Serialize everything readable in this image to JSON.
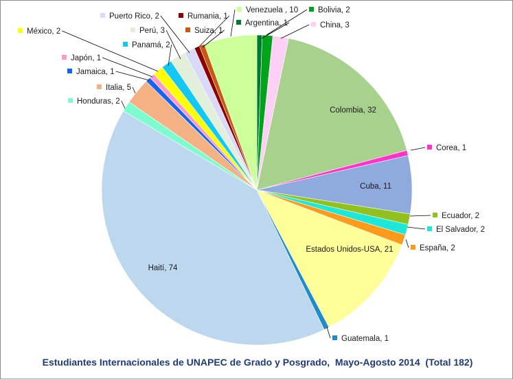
{
  "chart_data": {
    "type": "pie",
    "title": "Estudiantes Internacionales de UNAPEC de Grado y Posgrado,  Mayo-Agosto 2014  (Total 182)",
    "legend": "none",
    "slices": [
      {
        "label": "Argentina",
        "value": 1,
        "text": "Argentina, 1",
        "color": "#007a2c"
      },
      {
        "label": "Bolivia",
        "value": 2,
        "text": "Bolivia, 2",
        "color": "#00a31a"
      },
      {
        "label": "China",
        "value": 3,
        "text": "China, 3",
        "color": "#ffd0f5"
      },
      {
        "label": "Colombia",
        "value": 32,
        "text": "Colombia, 32",
        "color": "#a9d18e"
      },
      {
        "label": "Corea",
        "value": 1,
        "text": "Corea, 1",
        "color": "#ff33cc"
      },
      {
        "label": "Cuba",
        "value": 11,
        "text": "Cuba, 11",
        "color": "#8faadc"
      },
      {
        "label": "Ecuador",
        "value": 2,
        "text": "Ecuador, 2",
        "color": "#92c01c"
      },
      {
        "label": "El Salvador",
        "value": 2,
        "text": "El Salvador, 2",
        "color": "#1be8d8"
      },
      {
        "label": "España",
        "value": 2,
        "text": "España, 2",
        "color": "#ff9a1a"
      },
      {
        "label": "Estados Unidos-USA",
        "value": 21,
        "text": "Estados Unidos-USA, 21",
        "color": "#ffff99"
      },
      {
        "label": "Guatemala",
        "value": 1,
        "text": "Guatemala, 1",
        "color": "#1f8ec8"
      },
      {
        "label": "Haití",
        "value": 74,
        "text": "Haití, 74",
        "color": "#bdd7ee"
      },
      {
        "label": "Honduras",
        "value": 2,
        "text": "Honduras, 2",
        "color": "#7dfccf"
      },
      {
        "label": "Italia",
        "value": 5,
        "text": "Italia, 5",
        "color": "#f4b183"
      },
      {
        "label": "Jamaica",
        "value": 1,
        "text": "Jamaica, 1",
        "color": "#1464f0"
      },
      {
        "label": "Japón",
        "value": 1,
        "text": "Japón, 1",
        "color": "#ff99cc"
      },
      {
        "label": "México",
        "value": 2,
        "text": "México, 2",
        "color": "#ffff00"
      },
      {
        "label": "Panamá",
        "value": 2,
        "text": "Panamá, 2",
        "color": "#13c8f2"
      },
      {
        "label": "Perú",
        "value": 3,
        "text": "Perú, 3",
        "color": "#e2efda"
      },
      {
        "label": "Puerto Rico",
        "value": 2,
        "text": "Puerto Rico, 2",
        "color": "#d9d9f9"
      },
      {
        "label": "Rumania",
        "value": 1,
        "text": "Rumania, 1",
        "color": "#8b0000"
      },
      {
        "label": "Suiza",
        "value": 1,
        "text": "Suiza, 1",
        "color": "#c55a11"
      },
      {
        "label": "Venezuela",
        "value": 10,
        "text": "Venezuela , 10",
        "color": "#ccff99"
      }
    ]
  }
}
